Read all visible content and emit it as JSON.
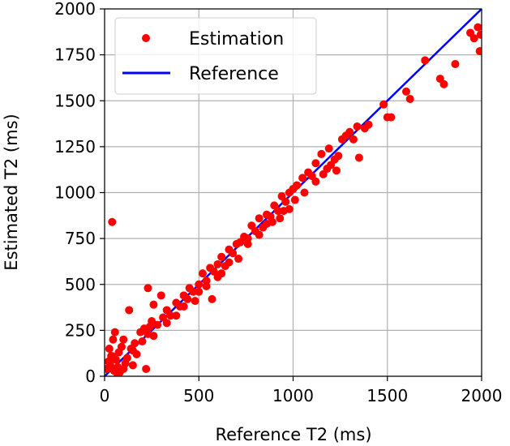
{
  "chart_data": {
    "type": "scatter",
    "xlabel": "Reference T2 (ms)",
    "ylabel": "Estimated T2 (ms)",
    "xlim": [
      0,
      2000
    ],
    "ylim": [
      0,
      2000
    ],
    "xticks": [
      0,
      500,
      1000,
      1500,
      2000
    ],
    "yticks": [
      0,
      250,
      500,
      750,
      1000,
      1250,
      1500,
      1750,
      2000
    ],
    "grid": true,
    "legend_position": "top-left",
    "series": [
      {
        "name": "Estimation",
        "kind": "points",
        "color": "#ff0000",
        "points": [
          [
            40,
            840
          ],
          [
            10,
            40
          ],
          [
            20,
            80
          ],
          [
            25,
            150
          ],
          [
            30,
            60
          ],
          [
            35,
            110
          ],
          [
            45,
            200
          ],
          [
            50,
            30
          ],
          [
            55,
            240
          ],
          [
            60,
            90
          ],
          [
            70,
            50
          ],
          [
            75,
            130
          ],
          [
            80,
            20
          ],
          [
            90,
            160
          ],
          [
            100,
            200
          ],
          [
            110,
            70
          ],
          [
            120,
            100
          ],
          [
            130,
            360
          ],
          [
            140,
            150
          ],
          [
            150,
            140
          ],
          [
            160,
            180
          ],
          [
            170,
            120
          ],
          [
            200,
            190
          ],
          [
            210,
            260
          ],
          [
            220,
            40
          ],
          [
            230,
            230
          ],
          [
            250,
            300
          ],
          [
            260,
            220
          ],
          [
            280,
            280
          ],
          [
            300,
            440
          ],
          [
            310,
            320
          ],
          [
            330,
            360
          ],
          [
            350,
            330
          ],
          [
            380,
            400
          ],
          [
            400,
            380
          ],
          [
            420,
            440
          ],
          [
            440,
            420
          ],
          [
            450,
            480
          ],
          [
            470,
            460
          ],
          [
            500,
            500
          ],
          [
            520,
            560
          ],
          [
            540,
            520
          ],
          [
            560,
            590
          ],
          [
            580,
            570
          ],
          [
            600,
            610
          ],
          [
            620,
            650
          ],
          [
            640,
            600
          ],
          [
            660,
            690
          ],
          [
            680,
            670
          ],
          [
            700,
            720
          ],
          [
            720,
            730
          ],
          [
            740,
            760
          ],
          [
            760,
            750
          ],
          [
            780,
            820
          ],
          [
            800,
            790
          ],
          [
            820,
            860
          ],
          [
            840,
            810
          ],
          [
            860,
            880
          ],
          [
            880,
            870
          ],
          [
            900,
            930
          ],
          [
            920,
            900
          ],
          [
            940,
            980
          ],
          [
            960,
            950
          ],
          [
            980,
            1000
          ],
          [
            1000,
            1020
          ],
          [
            1020,
            1040
          ],
          [
            1050,
            1080
          ],
          [
            1080,
            1110
          ],
          [
            1100,
            1090
          ],
          [
            1120,
            1160
          ],
          [
            1150,
            1210
          ],
          [
            1180,
            1130
          ],
          [
            1200,
            1150
          ],
          [
            1230,
            1120
          ],
          [
            1260,
            1290
          ],
          [
            1280,
            1310
          ],
          [
            1300,
            1330
          ],
          [
            1340,
            1360
          ],
          [
            1350,
            1190
          ],
          [
            1380,
            1350
          ],
          [
            1400,
            1370
          ],
          [
            1480,
            1480
          ],
          [
            1500,
            1410
          ],
          [
            1520,
            1410
          ],
          [
            1600,
            1550
          ],
          [
            1620,
            1510
          ],
          [
            1700,
            1720
          ],
          [
            1780,
            1620
          ],
          [
            1800,
            1590
          ],
          [
            1860,
            1700
          ],
          [
            1940,
            1870
          ],
          [
            1960,
            1840
          ],
          [
            1980,
            1900
          ],
          [
            1990,
            1770
          ],
          [
            1995,
            1860
          ],
          [
            230,
            480
          ],
          [
            240,
            270
          ],
          [
            260,
            390
          ],
          [
            190,
            240
          ],
          [
            570,
            420
          ],
          [
            330,
            290
          ],
          [
            480,
            410
          ],
          [
            620,
            560
          ],
          [
            890,
            840
          ],
          [
            930,
            860
          ],
          [
            980,
            910
          ],
          [
            1010,
            960
          ],
          [
            1160,
            1100
          ],
          [
            1190,
            1240
          ],
          [
            150,
            60
          ],
          [
            70,
            10
          ],
          [
            40,
            110
          ],
          [
            100,
            40
          ],
          [
            600,
            540
          ],
          [
            710,
            640
          ],
          [
            820,
            770
          ],
          [
            950,
            900
          ],
          [
            380,
            330
          ],
          [
            420,
            380
          ],
          [
            500,
            460
          ],
          [
            540,
            490
          ],
          [
            660,
            620
          ],
          [
            760,
            720
          ],
          [
            860,
            830
          ],
          [
            1060,
            1000
          ],
          [
            1120,
            1060
          ],
          [
            1220,
            1180
          ],
          [
            1240,
            1200
          ],
          [
            1320,
            1290
          ]
        ]
      },
      {
        "name": "Reference",
        "kind": "line",
        "color": "#0000ff",
        "points": [
          [
            0,
            0
          ],
          [
            2000,
            2000
          ]
        ]
      }
    ]
  }
}
